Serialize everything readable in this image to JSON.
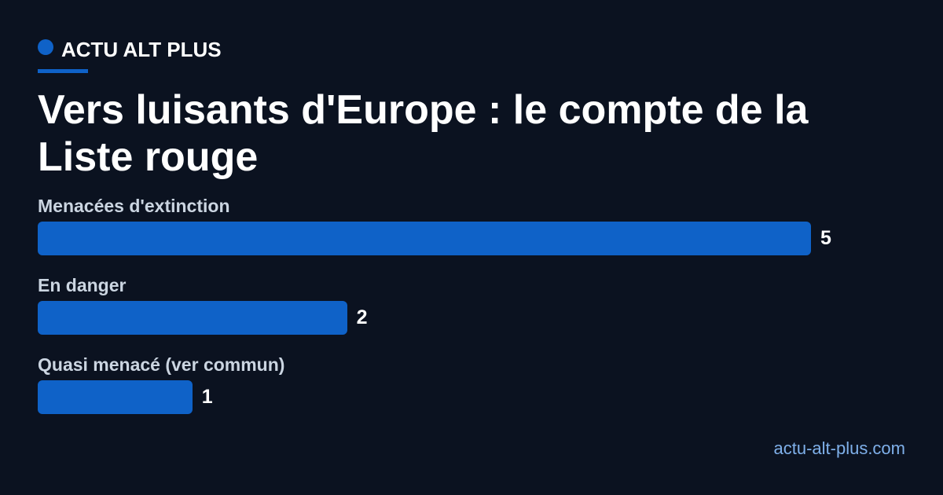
{
  "brand": "ACTU ALT PLUS",
  "site": "actu-alt-plus.com",
  "chart_data": {
    "type": "bar",
    "orientation": "horizontal",
    "title": "Vers luisants d'Europe : le compte de la Liste rouge",
    "categories": [
      "Menacées d'extinction",
      "En danger",
      "Quasi menacé (ver commun)"
    ],
    "values": [
      5,
      2,
      1
    ],
    "color": "#0f62c8"
  }
}
